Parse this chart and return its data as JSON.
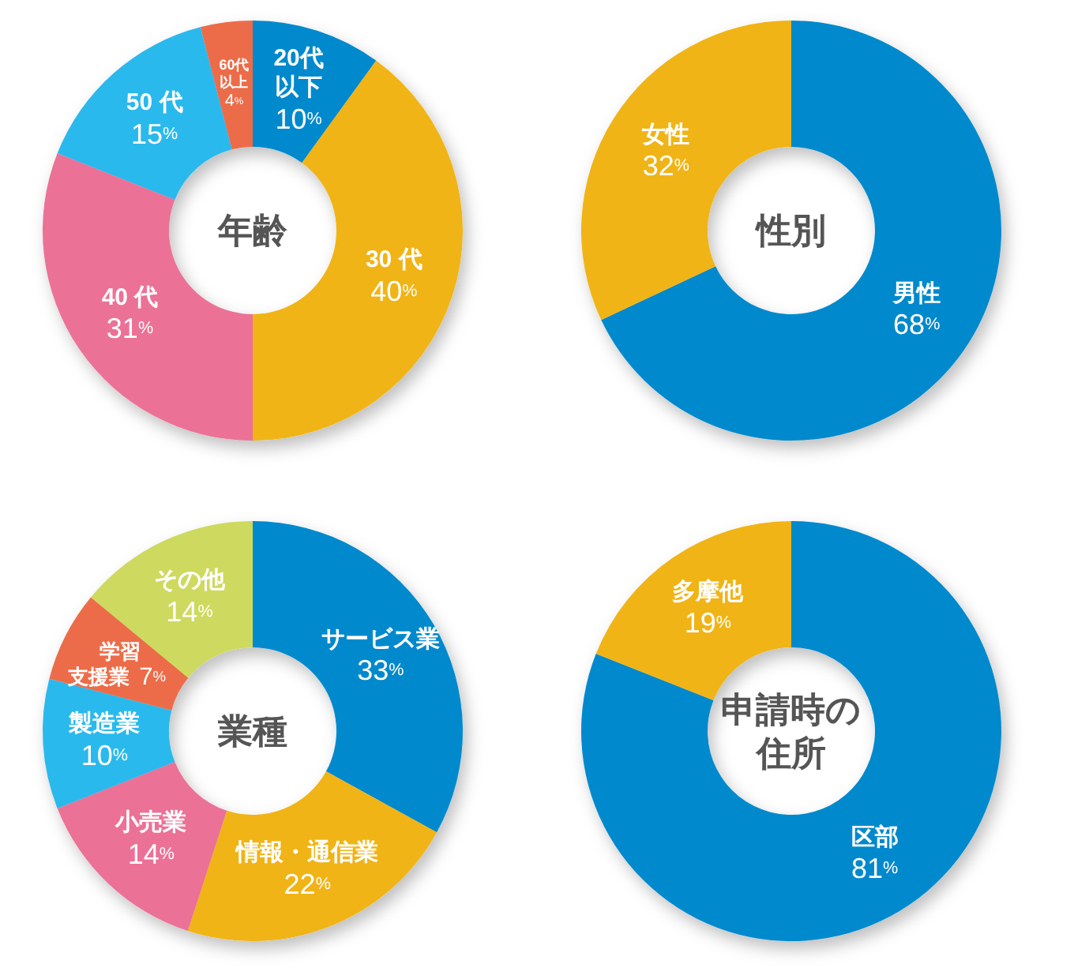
{
  "chart_data": [
    {
      "type": "donut",
      "title": "年齢",
      "categories": [
        "20代以下",
        "30 代",
        "40 代",
        "50 代",
        "60代以上"
      ],
      "values": [
        10,
        40,
        31,
        15,
        4
      ],
      "value_labels": [
        "10%",
        "40%",
        "31%",
        "15%",
        "4%"
      ],
      "colors": [
        "#0689cd",
        "#f0b413",
        "#ec7196",
        "#2cb9ec",
        "#ec6c4a"
      ]
    },
    {
      "type": "donut",
      "title": "性別",
      "categories": [
        "男性",
        "女性"
      ],
      "values": [
        68,
        32
      ],
      "value_labels": [
        "68%",
        "32%"
      ],
      "colors": [
        "#0689cd",
        "#f0b413"
      ]
    },
    {
      "type": "donut",
      "title": "業種",
      "categories": [
        "サービス業",
        "情報・通信業",
        "小売業",
        "製造業",
        "学習支援業",
        "その他"
      ],
      "values": [
        33,
        22,
        14,
        10,
        7,
        14
      ],
      "value_labels": [
        "33%",
        "22%",
        "14%",
        "10%",
        "7%",
        "14%"
      ],
      "colors": [
        "#0689cd",
        "#f0b413",
        "#ec7196",
        "#2cb9ec",
        "#ec6c4a",
        "#ced95f"
      ]
    },
    {
      "type": "donut",
      "title": "申請時の住所",
      "categories": [
        "区部",
        "多摩他"
      ],
      "values": [
        81,
        19
      ],
      "value_labels": [
        "81%",
        "19%"
      ],
      "colors": [
        "#0689cd",
        "#f0b413"
      ]
    }
  ]
}
